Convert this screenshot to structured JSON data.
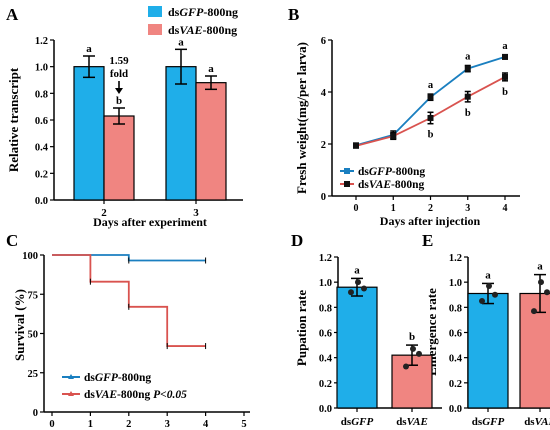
{
  "colors": {
    "blue": "#1faee9",
    "red": "#f08581",
    "axis": "#000000",
    "dark_blue": "#1a7fc0",
    "dark_red": "#d9534f"
  },
  "legend_top": {
    "gfp": {
      "pre": "ds",
      "it": "GFP",
      "post": "-800ng"
    },
    "vae": {
      "pre": "ds",
      "it": "VAE",
      "post": "-800ng"
    }
  },
  "chart_data": [
    {
      "panel": "A",
      "type": "bar",
      "ylabel": "Relative transcript",
      "xlabel": "Days after experiment",
      "categories": [
        "2",
        "3"
      ],
      "series": [
        {
          "name": "dsGFP-800ng",
          "values": [
            1.0,
            1.0
          ],
          "err": [
            0.08,
            0.13
          ],
          "letters": [
            "a",
            "a"
          ]
        },
        {
          "name": "dsVAE-800ng",
          "values": [
            0.63,
            0.88
          ],
          "err": [
            0.06,
            0.05
          ],
          "letters": [
            "b",
            "a"
          ]
        }
      ],
      "ylim": [
        0.0,
        1.2
      ],
      "yticks": [
        "0.0",
        "0.2",
        "0.4",
        "0.6",
        "0.8",
        "1.0",
        "1.2"
      ],
      "annotation": [
        "1.59",
        "fold"
      ]
    },
    {
      "panel": "B",
      "type": "line",
      "ylabel": "Fresh weight(mg/per larva)",
      "xlabel": "Days after injection",
      "x": [
        0,
        1,
        2,
        3,
        4
      ],
      "xticks": [
        "0",
        "1",
        "2",
        "3",
        "4"
      ],
      "yticks": [
        "0",
        "2",
        "4",
        "6"
      ],
      "ylim": [
        0,
        6
      ],
      "series": [
        {
          "name": "dsGFP-800ng",
          "values": [
            1.95,
            2.35,
            3.8,
            4.9,
            5.35
          ],
          "err": [
            0.05,
            0.15,
            0.12,
            0.12,
            0.08
          ],
          "letters": [
            "",
            "",
            "a",
            "a",
            "a"
          ]
        },
        {
          "name": "dsVAE-800ng",
          "values": [
            1.93,
            2.3,
            3.0,
            3.82,
            4.58
          ],
          "err": [
            0.05,
            0.12,
            0.22,
            0.2,
            0.15
          ],
          "letters": [
            "",
            "",
            "b",
            "b",
            "b"
          ]
        }
      ]
    },
    {
      "panel": "C",
      "type": "line",
      "ylabel": "Survival (%)",
      "x_steps": [
        0,
        1,
        2,
        3,
        4,
        5
      ],
      "xticks": [
        "0",
        "1",
        "2",
        "3",
        "4",
        "5"
      ],
      "yticks": [
        "0",
        "25",
        "50",
        "75",
        "100"
      ],
      "ylim": [
        0,
        100
      ],
      "series": [
        {
          "name": "dsGFP-800ng",
          "steps": [
            [
              0,
              100
            ],
            [
              2,
              96.5
            ],
            [
              4,
              96.5
            ]
          ]
        },
        {
          "name": "dsVAE-800ng",
          "steps": [
            [
              0,
              100
            ],
            [
              1,
              83
            ],
            [
              2,
              67
            ],
            [
              3,
              42
            ],
            [
              4,
              42
            ]
          ]
        }
      ],
      "legend_p": "P<0.05"
    },
    {
      "panel": "D",
      "type": "bar",
      "ylabel": "Pupation rate",
      "categories": [
        "dsGFP",
        "dsVAE"
      ],
      "values": [
        0.96,
        0.42
      ],
      "err": [
        0.07,
        0.08
      ],
      "letters": [
        "a",
        "b"
      ],
      "points": [
        [
          0.92,
          0.95,
          1.0
        ],
        [
          0.33,
          0.43,
          0.47
        ]
      ],
      "ylim": [
        0.0,
        1.2
      ],
      "yticks": [
        "0.0",
        "0.2",
        "0.4",
        "0.6",
        "0.8",
        "1.0",
        "1.2"
      ]
    },
    {
      "panel": "E",
      "type": "bar",
      "ylabel": "Emergence rate",
      "categories": [
        "dsGFP",
        "dsVAE"
      ],
      "values": [
        0.91,
        0.91
      ],
      "err": [
        0.08,
        0.15
      ],
      "letters": [
        "a",
        "a"
      ],
      "points": [
        [
          0.85,
          0.9,
          0.97
        ],
        [
          0.77,
          0.92,
          1.0
        ]
      ],
      "ylim": [
        0.0,
        1.2
      ],
      "yticks": [
        "0.0",
        "0.2",
        "0.4",
        "0.6",
        "0.8",
        "1.0",
        "1.2"
      ]
    }
  ]
}
